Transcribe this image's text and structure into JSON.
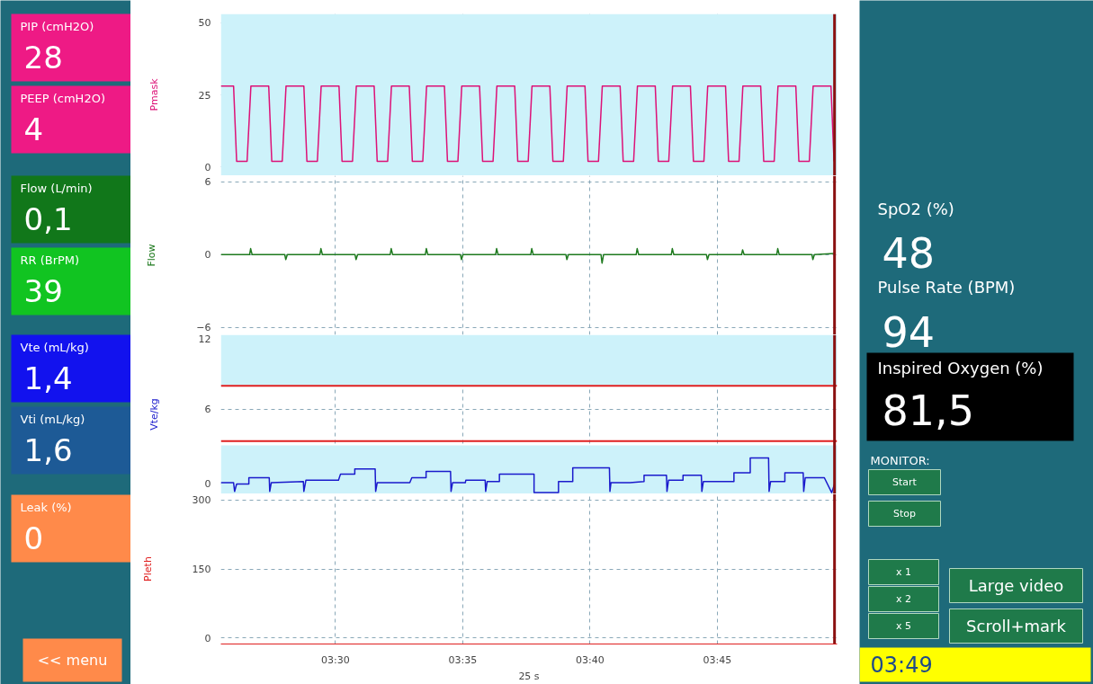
{
  "chart_data": [
    {
      "type": "other",
      "categories": [
        "PIP (cmH2O)",
        "PEEP (cmH2O)",
        "Flow (L/min)",
        "RR (BrPM)",
        "Vte (mL/kg)",
        "Vti (mL/kg)",
        "Leak (%)"
      ],
      "value_labels": [
        "28",
        "4",
        "0,1",
        "39",
        "1,4",
        "1,6",
        "0"
      ],
      "colors": [
        "#ee1a85",
        "#ee1a85",
        "#11771a",
        "#11c421",
        "#1212ee",
        "#1d5a96",
        "#ff8a4a"
      ],
      "annotations": [
        "<< menu"
      ]
    },
    {
      "type": "line",
      "ylabel": "Pmask",
      "xlim": [
        205.5,
        229.7
      ],
      "ylim": [
        -3,
        53
      ],
      "yticks": [
        0,
        25,
        50
      ],
      "xticks": [
        210,
        215,
        220,
        225
      ],
      "tick_labels": "y",
      "grid": true,
      "bands": [
        {
          "axis": "y",
          "from": -3,
          "to": 53,
          "color": "#cdf2fa"
        }
      ],
      "ref_lines": [
        {
          "axis": "x",
          "value": 229.6,
          "color": "#8b1010"
        }
      ],
      "series": [
        {
          "color": "#dd1177",
          "x": [
            205.5,
            206.0,
            206.12,
            206.53,
            206.68,
            207.38,
            207.5,
            207.91,
            208.06,
            208.76,
            208.88,
            209.29,
            209.44,
            210.14,
            210.26,
            210.67,
            210.82,
            211.52,
            211.64,
            212.05,
            212.2,
            212.9,
            213.02,
            213.43,
            213.58,
            214.28,
            214.4,
            214.81,
            214.96,
            215.66,
            215.78,
            216.19,
            216.34,
            217.04,
            217.16,
            217.57,
            217.72,
            218.42,
            218.54,
            218.95,
            219.1,
            219.8,
            219.92,
            220.33,
            220.48,
            221.18,
            221.3,
            221.71,
            221.86,
            222.56,
            222.68,
            223.09,
            223.24,
            223.94,
            224.06,
            224.47,
            224.62,
            225.32,
            225.44,
            225.85,
            226.0,
            226.7,
            226.82,
            227.23,
            227.38,
            228.08,
            228.2,
            228.61,
            228.76,
            229.46,
            229.58
          ],
          "values": [
            28,
            28,
            2,
            2,
            28,
            28,
            2,
            2,
            28,
            28,
            2,
            2,
            28,
            28,
            2,
            2,
            28,
            28,
            2,
            2,
            28,
            28,
            2,
            2,
            28,
            28,
            2,
            2,
            28,
            28,
            2,
            2,
            28,
            28,
            2,
            2,
            28,
            28,
            2,
            2,
            28,
            28,
            2,
            2,
            28,
            28,
            2,
            2,
            28,
            28,
            2,
            2,
            28,
            28,
            2,
            2,
            28,
            28,
            2,
            2,
            28,
            28,
            2,
            2,
            28,
            28,
            2,
            2,
            28,
            28,
            2
          ]
        }
      ]
    },
    {
      "type": "line",
      "ylabel": "Flow",
      "xlim": [
        205.5,
        229.7
      ],
      "ylim": [
        -6.6,
        6.5
      ],
      "yticks": [
        -6,
        0,
        6
      ],
      "xticks": [
        210,
        215,
        220,
        225
      ],
      "tick_labels": "y",
      "grid": true,
      "ref_lines": [
        {
          "axis": "x",
          "value": 229.6,
          "color": "#8b1010"
        }
      ],
      "series": [
        {
          "color": "#1f7a1f",
          "x": [
            205.5,
            206.63,
            206.67,
            206.73,
            208.01,
            208.05,
            208.11,
            209.39,
            209.43,
            209.49,
            210.77,
            210.81,
            210.87,
            212.15,
            212.19,
            212.25,
            213.53,
            213.57,
            213.63,
            214.91,
            214.95,
            215.01,
            216.29,
            216.33,
            216.39,
            217.67,
            217.71,
            217.77,
            219.05,
            219.09,
            219.15,
            220.43,
            220.47,
            220.53,
            221.81,
            221.85,
            221.91,
            223.19,
            223.23,
            223.29,
            224.57,
            224.61,
            224.67,
            225.95,
            225.99,
            226.05,
            227.33,
            227.37,
            227.43,
            228.71,
            228.75,
            228.81,
            229.6
          ],
          "values": [
            0,
            0,
            0.5,
            0,
            0,
            -0.4,
            0,
            0,
            0.5,
            0,
            0,
            -0.4,
            0,
            0,
            0.5,
            0,
            0,
            0.5,
            0,
            0,
            -0.4,
            0,
            0,
            0.5,
            0,
            0,
            0.5,
            0,
            0,
            -0.4,
            0,
            0,
            -0.7,
            0,
            0,
            0.5,
            0,
            0,
            0.5,
            0,
            0,
            -0.4,
            0,
            0,
            0.4,
            0,
            0,
            0.5,
            0,
            0,
            -0.4,
            0,
            0.1
          ]
        }
      ]
    },
    {
      "type": "line",
      "ylabel": "Vte/kg",
      "xlim": [
        205.5,
        229.7
      ],
      "ylim": [
        -0.8,
        12
      ],
      "yticks": [
        0,
        6,
        12
      ],
      "xticks": [
        210,
        215,
        220,
        225
      ],
      "tick_labels": "y",
      "grid": true,
      "bands": [
        {
          "axis": "y",
          "from": 7.9,
          "to": 12,
          "color": "#cdf2fa"
        },
        {
          "axis": "y",
          "from": -0.8,
          "to": 3.1,
          "color": "#cdf2fa"
        }
      ],
      "ref_lines": [
        {
          "axis": "y",
          "value": 7.9,
          "color": "#e02020"
        },
        {
          "axis": "y",
          "value": 3.45,
          "color": "#e02020"
        },
        {
          "axis": "x",
          "value": 229.6,
          "color": "#8b1010"
        }
      ],
      "series": [
        {
          "color": "#1a1acc",
          "x": [
            205.5,
            206.0,
            206.04,
            206.12,
            206.6,
            206.6,
            207.4,
            207.42,
            207.48,
            208.74,
            208.76,
            208.84,
            210.12,
            210.2,
            210.76,
            210.76,
            211.56,
            211.58,
            211.64,
            212.92,
            213.0,
            213.56,
            213.56,
            214.52,
            214.54,
            214.6,
            215.1,
            215.12,
            215.88,
            215.9,
            215.96,
            216.44,
            216.44,
            217.8,
            217.8,
            218.76,
            218.76,
            219.32,
            219.32,
            220.76,
            220.78,
            220.82,
            221.56,
            222.12,
            222.12,
            223.0,
            223.02,
            223.08,
            223.65,
            223.65,
            224.37,
            224.39,
            224.45,
            225.65,
            225.65,
            226.29,
            226.29,
            227.01,
            227.03,
            227.09,
            227.65,
            227.65,
            228.37,
            228.39,
            228.45,
            229.2,
            229.49,
            229.6
          ],
          "values": [
            0.1,
            0.1,
            -0.6,
            0.0,
            0.0,
            0.5,
            0.5,
            -0.6,
            0.1,
            0.2,
            -0.6,
            0.3,
            0.3,
            0.8,
            0.8,
            1.2,
            1.2,
            -0.6,
            0.1,
            0.1,
            0.5,
            0.5,
            1.0,
            1.0,
            -0.6,
            0.1,
            0.1,
            0.3,
            0.3,
            -0.6,
            0.2,
            0.2,
            0.8,
            0.8,
            -0.7,
            -0.7,
            0.2,
            0.2,
            1.3,
            1.3,
            -0.6,
            0.1,
            0.1,
            0.2,
            0.7,
            0.7,
            -0.6,
            0.3,
            0.3,
            0.7,
            0.7,
            -0.6,
            0.2,
            0.2,
            0.9,
            0.9,
            2.1,
            2.1,
            -0.6,
            0.2,
            0.2,
            0.9,
            0.9,
            -0.6,
            0.5,
            0.5,
            -0.7,
            0.0
          ]
        }
      ]
    },
    {
      "type": "line",
      "ylabel": "Pleth",
      "xlabel": "25 s",
      "xlim": [
        205.5,
        229.7
      ],
      "ylim": [
        -13,
        313
      ],
      "yticks": [
        0,
        150,
        300
      ],
      "xticks": [
        {
          "value": 210,
          "label": "03:30"
        },
        {
          "value": 215,
          "label": "03:35"
        },
        {
          "value": 220,
          "label": "03:40"
        },
        {
          "value": 225,
          "label": "03:45"
        }
      ],
      "grid": true,
      "ref_lines": [
        {
          "axis": "x",
          "value": 229.6,
          "color": "#8b1010"
        }
      ]
    },
    {
      "type": "other",
      "categories": [
        "SpO2 (%)",
        "Pulse Rate (BPM)",
        "Inspired Oxygen (%)"
      ],
      "value_labels": [
        "48",
        "94",
        "81,5"
      ],
      "colors": [
        "#1e6a7a",
        "#1e6a7a",
        "#000000"
      ],
      "annotations": [
        "MONITOR:",
        "Start",
        "Stop",
        "x 1",
        "x 2",
        "x 5",
        "Large video",
        "Scroll+mark",
        "03:49"
      ]
    }
  ]
}
